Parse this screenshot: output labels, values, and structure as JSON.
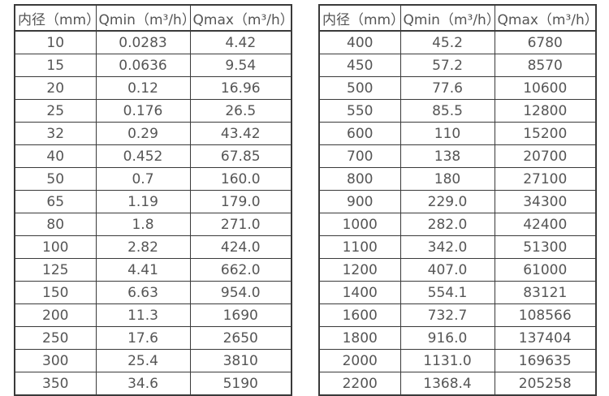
{
  "colors": {
    "border": "#3a3a3a",
    "text": "#555555",
    "background": "#ffffff"
  },
  "tables": [
    {
      "name": "flow-spec-small-diameters",
      "headers": [
        "内径（mm）",
        "Qmin（m³/h）",
        "Qmax（m³/h）"
      ],
      "rows": [
        [
          "10",
          "0.0283",
          "4.42"
        ],
        [
          "15",
          "0.0636",
          "9.54"
        ],
        [
          "20",
          "0.12",
          "16.96"
        ],
        [
          "25",
          "0.176",
          "26.5"
        ],
        [
          "32",
          "0.29",
          "43.42"
        ],
        [
          "40",
          "0.452",
          "67.85"
        ],
        [
          "50",
          "0.7",
          "160.0"
        ],
        [
          "65",
          "1.19",
          "179.0"
        ],
        [
          "80",
          "1.8",
          "271.0"
        ],
        [
          "100",
          "2.82",
          "424.0"
        ],
        [
          "125",
          "4.41",
          "662.0"
        ],
        [
          "150",
          "6.63",
          "954.0"
        ],
        [
          "200",
          "11.3",
          "1690"
        ],
        [
          "250",
          "17.6",
          "2650"
        ],
        [
          "300",
          "25.4",
          "3810"
        ],
        [
          "350",
          "34.6",
          "5190"
        ]
      ]
    },
    {
      "name": "flow-spec-large-diameters",
      "headers": [
        "内径（mm）",
        "Qmin（m³/h）",
        "Qmax（m³/h）"
      ],
      "rows": [
        [
          "400",
          "45.2",
          "6780"
        ],
        [
          "450",
          "57.2",
          "8570"
        ],
        [
          "500",
          "77.6",
          "10600"
        ],
        [
          "550",
          "85.5",
          "12800"
        ],
        [
          "600",
          "110",
          "15200"
        ],
        [
          "700",
          "138",
          "20700"
        ],
        [
          "800",
          "180",
          "27100"
        ],
        [
          "900",
          "229.0",
          "34300"
        ],
        [
          "1000",
          "282.0",
          "42400"
        ],
        [
          "1100",
          "342.0",
          "51300"
        ],
        [
          "1200",
          "407.0",
          "61000"
        ],
        [
          "1400",
          "554.1",
          "83121"
        ],
        [
          "1600",
          "732.7",
          "108566"
        ],
        [
          "1800",
          "916.0",
          "137404"
        ],
        [
          "2000",
          "1131.0",
          "169635"
        ],
        [
          "2200",
          "1368.4",
          "205258"
        ]
      ]
    }
  ]
}
